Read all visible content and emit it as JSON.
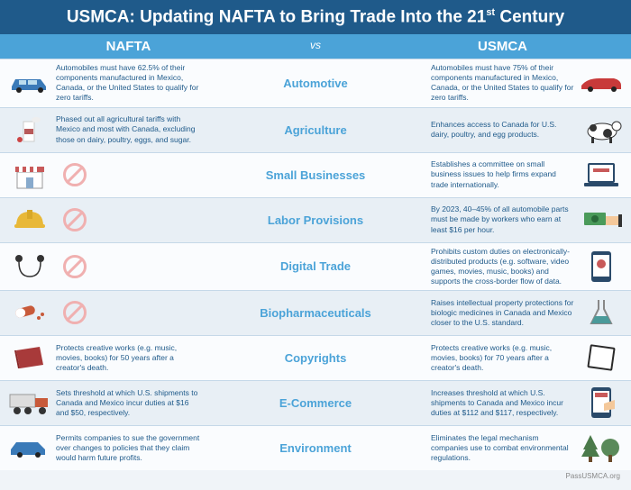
{
  "title_prefix": "USMCA: Updating NAFTA to Bring Trade Into the 21",
  "title_suffix": " Century",
  "left_head": "NAFTA",
  "mid_head": "vs",
  "right_head": "USMCA",
  "footer": "PassUSMCA.org",
  "rows": [
    {
      "cat": "Automotive",
      "left": "Automobiles must have 62.5% of their components manufactured in Mexico, Canada, or the United States to qualify for zero tariffs.",
      "right": "Automobiles must have 75% of their components manufactured in Mexico, Canada, or the United States to qualify for zero tariffs.",
      "li": "car-blue",
      "ri": "car-red",
      "lp": false
    },
    {
      "cat": "Agriculture",
      "left": "Phased out all agricultural tariffs with Mexico and most with Canada, excluding those on dairy, poultry, eggs, and sugar.",
      "right": "Enhances access to Canada for U.S. dairy, poultry, and egg products.",
      "li": "milk",
      "ri": "cow",
      "lp": false
    },
    {
      "cat": "Small Businesses",
      "left": "",
      "right": "Establishes a committee on small business issues to help firms expand trade internationally.",
      "li": "storefront",
      "ri": "laptop-store",
      "lp": true
    },
    {
      "cat": "Labor Provisions",
      "left": "",
      "right": "By 2023, 40–45% of all automobile parts must be made by workers who earn at least $16 per hour.",
      "li": "hardhat",
      "ri": "money-hand",
      "lp": true
    },
    {
      "cat": "Digital Trade",
      "left": "",
      "right": "Prohibits custom duties on electronically-distributed products (e.g. software, video games, movies, music, books) and supports the cross-border flow of data.",
      "li": "earbuds",
      "ri": "phone",
      "lp": true
    },
    {
      "cat": "Biopharmaceuticals",
      "left": "",
      "right": "Raises intellectual property protections for biologic medicines in Canada and Mexico closer to the U.S. standard.",
      "li": "pills",
      "ri": "flask",
      "lp": true
    },
    {
      "cat": "Copyrights",
      "left": "Protects creative works (e.g. music, movies, books) for 50 years after a creator's death.",
      "right": "Protects creative works (e.g. music, movies, books) for 70 years after a creator's death.",
      "li": "book",
      "ri": "tablet",
      "lp": false
    },
    {
      "cat": "E-Commerce",
      "left": "Sets threshold at which U.S. shipments to Canada and Mexico incur duties at $16 and $50, respectively.",
      "right": "Increases threshold at which U.S. shipments to Canada and Mexico incur duties at $112 and $117, respectively.",
      "li": "truck",
      "ri": "phone-shop",
      "lp": false
    },
    {
      "cat": "Environment",
      "left": "Permits companies to sue the government over changes to policies that they claim would harm future profits.",
      "right": "Eliminates the legal mechanism companies use to combat environmental regulations.",
      "li": "car-side",
      "ri": "trees",
      "lp": false
    }
  ],
  "icon_colors": {
    "car-blue": "#3a7ab8",
    "car-red": "#c83a3a",
    "milk": "#b85a5a",
    "cow": "#333",
    "storefront": "#c85a5a",
    "laptop-store": "#2a4a6a",
    "hardhat": "#e8b838",
    "money-hand": "#4a9a5a",
    "earbuds": "#333",
    "phone": "#2a4a6a",
    "pills": "#c85a3a",
    "flask": "#4a9a9a",
    "book": "#a83a3a",
    "tablet": "#2a2a2a",
    "truck": "#c85a3a",
    "phone-shop": "#c85a5a",
    "car-side": "#3a7ab8",
    "trees": "#4a7a4a"
  }
}
